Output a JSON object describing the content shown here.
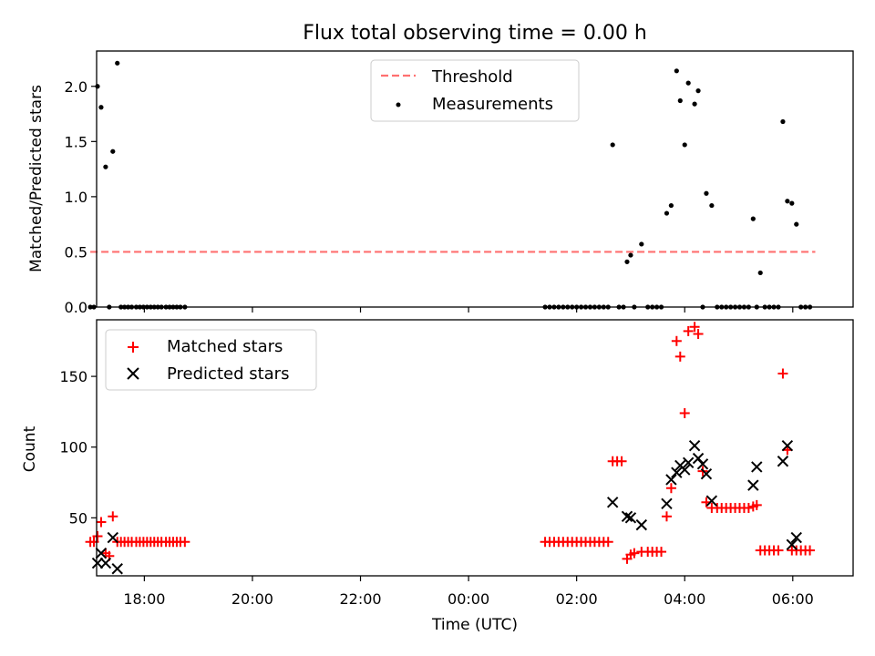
{
  "title": "Flux total observing time = 0.00 h",
  "colors": {
    "threshold": "#ff7070",
    "measurement": "#000000",
    "matched": "#ff0000",
    "predicted": "#000000",
    "axes": "#000000"
  },
  "chart_data": [
    {
      "type": "scatter",
      "title": "Flux total observing time = 0.00 h",
      "ylabel": "Matched/Predicted stars",
      "xlabel": "",
      "xlim": [
        "17:07",
        "07:07"
      ],
      "ylim": [
        0,
        2.32
      ],
      "yticks": [
        0.0,
        0.5,
        1.0,
        1.5,
        2.0
      ],
      "ytick_labels": [
        "0.0",
        "0.5",
        "1.0",
        "1.5",
        "2.0"
      ],
      "xticks": [
        "18:00",
        "20:00",
        "22:00",
        "00:00",
        "02:00",
        "04:00",
        "06:00"
      ],
      "legend": "top-center",
      "threshold": {
        "name": "Threshold",
        "y": 0.5,
        "x_range": [
          "17:00",
          "06:25"
        ]
      },
      "measurements": {
        "name": "Measurements",
        "points": [
          [
            "17:00",
            0
          ],
          [
            "17:04",
            0
          ],
          [
            "17:08",
            2.0
          ],
          [
            "17:12",
            1.81
          ],
          [
            "17:17",
            1.27
          ],
          [
            "17:21",
            0
          ],
          [
            "17:25",
            1.41
          ],
          [
            "17:30",
            2.21
          ],
          [
            "17:34",
            0
          ],
          [
            "17:38",
            0
          ],
          [
            "17:42",
            0
          ],
          [
            "17:46",
            0
          ],
          [
            "17:51",
            0
          ],
          [
            "17:55",
            0
          ],
          [
            "17:59",
            0
          ],
          [
            "18:03",
            0
          ],
          [
            "18:07",
            0
          ],
          [
            "18:11",
            0
          ],
          [
            "18:15",
            0
          ],
          [
            "18:19",
            0
          ],
          [
            "18:24",
            0
          ],
          [
            "18:28",
            0
          ],
          [
            "18:32",
            0
          ],
          [
            "18:36",
            0
          ],
          [
            "18:40",
            0
          ],
          [
            "18:45",
            0
          ],
          [
            "01:25",
            0
          ],
          [
            "01:30",
            0
          ],
          [
            "01:35",
            0
          ],
          [
            "01:40",
            0
          ],
          [
            "01:45",
            0
          ],
          [
            "01:50",
            0
          ],
          [
            "01:55",
            0
          ],
          [
            "02:00",
            0
          ],
          [
            "02:05",
            0
          ],
          [
            "02:10",
            0
          ],
          [
            "02:15",
            0
          ],
          [
            "02:20",
            0
          ],
          [
            "02:25",
            0
          ],
          [
            "02:30",
            0
          ],
          [
            "02:35",
            0
          ],
          [
            "02:40",
            1.47
          ],
          [
            "02:47",
            0
          ],
          [
            "02:52",
            0
          ],
          [
            "02:56",
            0.41
          ],
          [
            "03:00",
            0.47
          ],
          [
            "03:04",
            0
          ],
          [
            "03:12",
            0.57
          ],
          [
            "03:19",
            0
          ],
          [
            "03:24",
            0
          ],
          [
            "03:29",
            0
          ],
          [
            "03:34",
            0
          ],
          [
            "03:40",
            0.85
          ],
          [
            "03:45",
            0.92
          ],
          [
            "03:51",
            2.14
          ],
          [
            "03:55",
            1.87
          ],
          [
            "04:00",
            1.47
          ],
          [
            "04:04",
            2.03
          ],
          [
            "04:11",
            1.84
          ],
          [
            "04:15",
            1.96
          ],
          [
            "04:20",
            0
          ],
          [
            "04:24",
            1.03
          ],
          [
            "04:30",
            0.92
          ],
          [
            "04:36",
            0
          ],
          [
            "04:41",
            0
          ],
          [
            "04:46",
            0
          ],
          [
            "04:51",
            0
          ],
          [
            "04:56",
            0
          ],
          [
            "05:01",
            0
          ],
          [
            "05:06",
            0
          ],
          [
            "05:11",
            0
          ],
          [
            "05:16",
            0.8
          ],
          [
            "05:20",
            0
          ],
          [
            "05:24",
            0.31
          ],
          [
            "05:29",
            0
          ],
          [
            "05:34",
            0
          ],
          [
            "05:39",
            0
          ],
          [
            "05:44",
            0
          ],
          [
            "05:49",
            1.68
          ],
          [
            "05:54",
            0.96
          ],
          [
            "05:59",
            0.94
          ],
          [
            "06:04",
            0.75
          ],
          [
            "06:09",
            0
          ],
          [
            "06:14",
            0
          ],
          [
            "06:19",
            0
          ]
        ]
      }
    },
    {
      "type": "scatter",
      "ylabel": "Count",
      "xlabel": "Time (UTC)",
      "xlim": [
        "17:07",
        "07:07"
      ],
      "ylim": [
        9,
        190
      ],
      "yticks": [
        50,
        100,
        150
      ],
      "ytick_labels": [
        "50",
        "100",
        "150"
      ],
      "xticks": [
        "18:00",
        "20:00",
        "22:00",
        "00:00",
        "02:00",
        "04:00",
        "06:00"
      ],
      "xtick_labels": [
        "18:00",
        "20:00",
        "22:00",
        "00:00",
        "02:00",
        "04:00",
        "06:00"
      ],
      "legend": "top-left",
      "series": [
        {
          "name": "Matched stars",
          "marker": "plus",
          "points": [
            [
              "17:00",
              33
            ],
            [
              "17:04",
              33
            ],
            [
              "17:08",
              37
            ],
            [
              "17:12",
              47
            ],
            [
              "17:17",
              25
            ],
            [
              "17:21",
              23
            ],
            [
              "17:25",
              51
            ],
            [
              "17:30",
              33
            ],
            [
              "17:34",
              33
            ],
            [
              "17:38",
              33
            ],
            [
              "17:42",
              33
            ],
            [
              "17:46",
              33
            ],
            [
              "17:51",
              33
            ],
            [
              "17:55",
              33
            ],
            [
              "17:59",
              33
            ],
            [
              "18:03",
              33
            ],
            [
              "18:07",
              33
            ],
            [
              "18:11",
              33
            ],
            [
              "18:15",
              33
            ],
            [
              "18:19",
              33
            ],
            [
              "18:24",
              33
            ],
            [
              "18:28",
              33
            ],
            [
              "18:32",
              33
            ],
            [
              "18:36",
              33
            ],
            [
              "18:40",
              33
            ],
            [
              "18:45",
              33
            ],
            [
              "01:25",
              33
            ],
            [
              "01:30",
              33
            ],
            [
              "01:35",
              33
            ],
            [
              "01:40",
              33
            ],
            [
              "01:45",
              33
            ],
            [
              "01:50",
              33
            ],
            [
              "01:55",
              33
            ],
            [
              "02:00",
              33
            ],
            [
              "02:05",
              33
            ],
            [
              "02:10",
              33
            ],
            [
              "02:15",
              33
            ],
            [
              "02:20",
              33
            ],
            [
              "02:25",
              33
            ],
            [
              "02:30",
              33
            ],
            [
              "02:35",
              33
            ],
            [
              "02:40",
              90
            ],
            [
              "02:45",
              90
            ],
            [
              "02:50",
              90
            ],
            [
              "02:56",
              21
            ],
            [
              "03:00",
              24
            ],
            [
              "03:04",
              25
            ],
            [
              "03:12",
              26
            ],
            [
              "03:19",
              26
            ],
            [
              "03:24",
              26
            ],
            [
              "03:29",
              26
            ],
            [
              "03:34",
              26
            ],
            [
              "03:40",
              51
            ],
            [
              "03:45",
              71
            ],
            [
              "03:51",
              175
            ],
            [
              "03:55",
              164
            ],
            [
              "04:00",
              124
            ],
            [
              "04:04",
              182
            ],
            [
              "04:11",
              185
            ],
            [
              "04:15",
              180
            ],
            [
              "04:20",
              83
            ],
            [
              "04:24",
              61
            ],
            [
              "04:30",
              57
            ],
            [
              "04:36",
              57
            ],
            [
              "04:41",
              57
            ],
            [
              "04:46",
              57
            ],
            [
              "04:51",
              57
            ],
            [
              "04:56",
              57
            ],
            [
              "05:01",
              57
            ],
            [
              "05:06",
              57
            ],
            [
              "05:11",
              57
            ],
            [
              "05:16",
              58
            ],
            [
              "05:20",
              59
            ],
            [
              "05:24",
              27
            ],
            [
              "05:29",
              27
            ],
            [
              "05:34",
              27
            ],
            [
              "05:39",
              27
            ],
            [
              "05:44",
              27
            ],
            [
              "05:49",
              152
            ],
            [
              "05:54",
              98
            ],
            [
              "05:59",
              27
            ],
            [
              "06:04",
              27
            ],
            [
              "06:09",
              27
            ],
            [
              "06:14",
              27
            ],
            [
              "06:19",
              27
            ]
          ]
        },
        {
          "name": "Predicted stars",
          "marker": "x",
          "points": [
            [
              "17:08",
              18
            ],
            [
              "17:12",
              25
            ],
            [
              "17:17",
              18
            ],
            [
              "17:25",
              36
            ],
            [
              "17:30",
              14
            ],
            [
              "02:40",
              61
            ],
            [
              "02:56",
              51
            ],
            [
              "03:00",
              50
            ],
            [
              "03:12",
              45
            ],
            [
              "03:40",
              60
            ],
            [
              "03:45",
              77
            ],
            [
              "03:51",
              82
            ],
            [
              "03:55",
              87
            ],
            [
              "04:00",
              84
            ],
            [
              "04:04",
              89
            ],
            [
              "04:11",
              101
            ],
            [
              "04:15",
              92
            ],
            [
              "04:20",
              88
            ],
            [
              "04:24",
              81
            ],
            [
              "04:30",
              62
            ],
            [
              "05:16",
              73
            ],
            [
              "05:20",
              86
            ],
            [
              "05:49",
              90
            ],
            [
              "05:54",
              101
            ],
            [
              "05:59",
              31
            ],
            [
              "06:04",
              36
            ]
          ]
        }
      ]
    }
  ]
}
